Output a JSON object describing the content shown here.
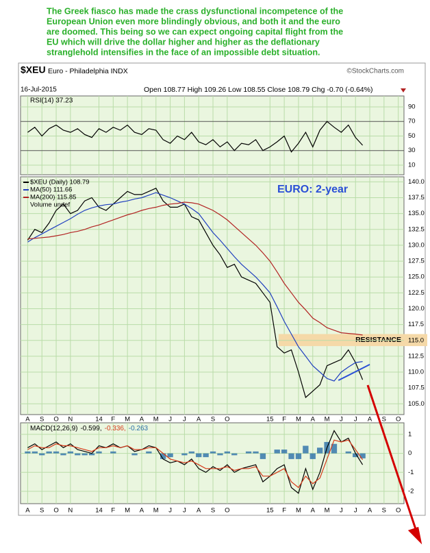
{
  "note": {
    "lines": [
      "The Greek fiasco has made the crass dysfunctional incompetence of the",
      "European Union even more blindingly obvious, and both it and the euro",
      "are doomed. This being so we can expect ongoing capital flight from the",
      "EU which will drive the dollar higher and higher as the deflationary",
      "stranglehold intensifies in the face of an impossible debt situation."
    ]
  },
  "header": {
    "symbol": "$XEU",
    "name": "Euro - Philadelphia INDX",
    "credit": "©StockCharts.com",
    "date": "16-Jul-2015",
    "quote": "Open 108.77  High 109.26  Low 108.55  Close 108.79  Chg -0.70 (-0.64%)"
  },
  "chart_data": [
    {
      "type": "line",
      "title": "RSI(14) 37.23",
      "x": [
        0,
        0.5,
        1,
        1.5,
        2,
        2.5,
        3,
        3.5,
        4,
        4.5,
        5,
        5.5,
        6,
        6.5,
        7,
        7.5,
        8,
        8.5,
        9,
        9.5,
        10,
        10.5,
        11,
        11.5,
        12,
        12.5,
        13,
        13.5,
        14,
        14.5,
        15,
        15.5,
        16,
        16.5,
        17,
        17.5,
        18,
        18.5,
        19,
        19.5,
        20,
        20.5,
        21,
        21.5,
        22,
        22.5,
        23,
        23.5
      ],
      "series": [
        {
          "name": "RSI(14)",
          "color": "#000000",
          "values": [
            55,
            62,
            50,
            60,
            65,
            58,
            55,
            60,
            52,
            48,
            60,
            55,
            62,
            58,
            65,
            55,
            52,
            60,
            58,
            45,
            40,
            50,
            45,
            55,
            42,
            38,
            45,
            35,
            42,
            30,
            40,
            38,
            45,
            30,
            35,
            42,
            50,
            28,
            40,
            55,
            35,
            58,
            70,
            62,
            55,
            65,
            48,
            37.23
          ]
        }
      ],
      "xlim": [
        -0.5,
        26.4
      ],
      "ylim": [
        -3.2,
        105
      ],
      "yticks": [
        10,
        30,
        50,
        70,
        90
      ],
      "grid": true
    },
    {
      "type": "line",
      "annotation": "EURO: 2-year",
      "legend_extra": "Volume undef",
      "x": [
        0,
        0.5,
        1,
        1.5,
        2,
        2.5,
        3,
        3.5,
        4,
        4.5,
        5,
        5.5,
        6,
        6.5,
        7,
        7.5,
        8,
        8.5,
        9,
        9.5,
        10,
        10.5,
        11,
        11.5,
        12,
        12.5,
        13,
        13.5,
        14,
        14.5,
        15,
        15.5,
        16,
        16.5,
        17,
        17.5,
        18,
        18.5,
        19,
        19.5,
        20,
        20.5,
        21,
        21.5,
        22,
        22.5,
        23,
        23.5
      ],
      "series": [
        {
          "name": "$XEU (Daily) 108.79",
          "color": "#000000",
          "values": [
            130.8,
            132.5,
            132,
            133.5,
            135.5,
            136.5,
            135,
            135.5,
            137,
            137.5,
            136,
            135.5,
            136.5,
            137.5,
            138.5,
            138,
            138,
            138.5,
            139,
            137,
            136,
            136,
            136.5,
            134.5,
            134,
            132,
            130,
            128.5,
            126.5,
            127,
            125,
            124.5,
            124,
            122.5,
            121,
            114,
            113,
            113.5,
            110,
            106,
            107,
            108,
            111,
            111.5,
            112,
            113.5,
            111.5,
            108.79
          ]
        },
        {
          "name": "MA(50) 111.66",
          "color": "#1f3fbf",
          "values": [
            130.5,
            131.2,
            131.8,
            132.4,
            133,
            133.6,
            134.2,
            134.9,
            135.5,
            135.9,
            136.2,
            136.4,
            136.5,
            136.8,
            137,
            137.3,
            137.5,
            137.9,
            138.3,
            137.9,
            137.5,
            137,
            136.5,
            135.8,
            135,
            133.5,
            132,
            130.8,
            129.5,
            128.2,
            127,
            126,
            125,
            123.8,
            122.5,
            120.3,
            118,
            116,
            114,
            112.5,
            111,
            110,
            109,
            108.6,
            110,
            110.8,
            111.5,
            111.66
          ]
        },
        {
          "name": "MA(200) 115.85",
          "color": "#b22222",
          "values": [
            131,
            131.1,
            131.2,
            131.3,
            131.5,
            131.7,
            132,
            132.2,
            132.5,
            132.9,
            133.2,
            133.6,
            134,
            134.4,
            134.8,
            135.1,
            135.5,
            135.8,
            136,
            136.3,
            136.5,
            136.6,
            136.8,
            136.7,
            136.5,
            136,
            135.5,
            134.8,
            134,
            133,
            132,
            131,
            130,
            128.8,
            127.5,
            125.8,
            124,
            122.5,
            121,
            119.8,
            118.5,
            117.8,
            117,
            116.6,
            116.2,
            116.1,
            116,
            115.85
          ]
        }
      ],
      "resistance": {
        "label": "RESISTANCE",
        "from": 17.6,
        "range": [
          114.1,
          116.0
        ],
        "color": "#f5d9a8"
      },
      "trendline": {
        "x": [
          21.8,
          24.0
        ],
        "y": [
          108.7,
          111.2
        ],
        "color": "#2a4fd6"
      },
      "xlim": [
        -0.5,
        26.4
      ],
      "ylim": [
        103.3,
        140.8
      ],
      "xticks": [
        {
          "value": 0,
          "label": "A"
        },
        {
          "value": 1,
          "label": "S"
        },
        {
          "value": 2,
          "label": "O"
        },
        {
          "value": 3,
          "label": "N"
        },
        {
          "value": 5,
          "label": "14"
        },
        {
          "value": 6,
          "label": "F"
        },
        {
          "value": 7,
          "label": "M"
        },
        {
          "value": 8,
          "label": "A"
        },
        {
          "value": 9,
          "label": "M"
        },
        {
          "value": 10,
          "label": "J"
        },
        {
          "value": 11,
          "label": "J"
        },
        {
          "value": 12,
          "label": "A"
        },
        {
          "value": 13,
          "label": "S"
        },
        {
          "value": 14,
          "label": "O"
        },
        {
          "value": 17,
          "label": "15"
        },
        {
          "value": 18,
          "label": "F"
        },
        {
          "value": 19,
          "label": "M"
        },
        {
          "value": 20,
          "label": "A"
        },
        {
          "value": 21,
          "label": "M"
        },
        {
          "value": 22,
          "label": "J"
        },
        {
          "value": 23,
          "label": "J"
        },
        {
          "value": 24,
          "label": "A"
        },
        {
          "value": 25,
          "label": "S"
        },
        {
          "value": 26,
          "label": "O"
        }
      ],
      "yticks": [
        {
          "value": 105,
          "label": "105.0"
        },
        {
          "value": 107.5,
          "label": "107.5"
        },
        {
          "value": 110,
          "label": "110.0"
        },
        {
          "value": 112.5,
          "label": "112.5"
        },
        {
          "value": 115,
          "label": "115.0"
        },
        {
          "value": 117.5,
          "label": "117.5"
        },
        {
          "value": 120,
          "label": "120.0"
        },
        {
          "value": 122.5,
          "label": "122.5"
        },
        {
          "value": 125,
          "label": "125.0"
        },
        {
          "value": 127.5,
          "label": "127.5"
        },
        {
          "value": 130,
          "label": "130.0"
        },
        {
          "value": 132.5,
          "label": "132.5"
        },
        {
          "value": 135,
          "label": "135.0"
        },
        {
          "value": 137.5,
          "label": "137.5"
        },
        {
          "value": 140,
          "label": "140.0"
        }
      ],
      "grid": true
    },
    {
      "type": "line",
      "title": "MACD(12,26,9)",
      "x": [
        0,
        0.5,
        1,
        1.5,
        2,
        2.5,
        3,
        3.5,
        4,
        4.5,
        5,
        5.5,
        6,
        6.5,
        7,
        7.5,
        8,
        8.5,
        9,
        9.5,
        10,
        10.5,
        11,
        11.5,
        12,
        12.5,
        13,
        13.5,
        14,
        14.5,
        15,
        15.5,
        16,
        16.5,
        17,
        17.5,
        18,
        18.5,
        19,
        19.5,
        20,
        20.5,
        21,
        21.5,
        22,
        22.5,
        23,
        23.5
      ],
      "series": [
        {
          "name": "-0.599,",
          "color": "#000000",
          "values": [
            0.3,
            0.5,
            0.2,
            0.4,
            0.6,
            0.3,
            0.5,
            0.2,
            0.1,
            0.0,
            0.4,
            0.3,
            0.5,
            0.3,
            0.4,
            0.1,
            0.2,
            0.4,
            0.3,
            -0.3,
            -0.5,
            -0.4,
            -0.6,
            -0.3,
            -0.8,
            -1.0,
            -0.7,
            -0.9,
            -0.6,
            -1.0,
            -0.8,
            -0.7,
            -0.6,
            -1.5,
            -1.2,
            -0.8,
            -0.6,
            -1.8,
            -2.1,
            -0.8,
            -1.9,
            -1.0,
            0.3,
            1.2,
            0.6,
            0.8,
            0.0,
            -0.599
          ]
        },
        {
          "name": "-0.336,",
          "color": "#d63a1a",
          "values": [
            0.2,
            0.4,
            0.3,
            0.3,
            0.5,
            0.4,
            0.4,
            0.3,
            0.2,
            0.1,
            0.3,
            0.3,
            0.4,
            0.3,
            0.4,
            0.2,
            0.2,
            0.3,
            0.3,
            0.0,
            -0.3,
            -0.4,
            -0.5,
            -0.4,
            -0.6,
            -0.8,
            -0.8,
            -0.8,
            -0.7,
            -0.9,
            -0.8,
            -0.8,
            -0.7,
            -1.2,
            -1.2,
            -1.0,
            -0.8,
            -1.5,
            -1.8,
            -1.2,
            -1.6,
            -1.3,
            -0.3,
            0.7,
            0.6,
            0.7,
            0.2,
            -0.336
          ]
        },
        {
          "name": "-0.263",
          "color": "#2a6fa8",
          "type": "bar",
          "values": [
            0.1,
            0.1,
            -0.1,
            0.1,
            0.1,
            -0.1,
            0.1,
            -0.1,
            -0.1,
            -0.1,
            0.1,
            0,
            0.1,
            0,
            0,
            -0.1,
            0,
            0.1,
            0,
            -0.3,
            -0.2,
            0,
            -0.1,
            0.1,
            -0.2,
            -0.2,
            0.1,
            -0.1,
            0.1,
            -0.1,
            0,
            0.1,
            0.1,
            -0.3,
            0,
            0.2,
            0.2,
            -0.3,
            -0.3,
            0.4,
            -0.3,
            0.3,
            0.6,
            0.5,
            0,
            0.1,
            -0.2,
            -0.263
          ]
        }
      ],
      "xlim": [
        -0.5,
        26.4
      ],
      "ylim": [
        -2.65,
        1.61
      ],
      "yticks": [
        -2,
        -1,
        0,
        1
      ],
      "xticks": [
        {
          "value": 0,
          "label": "A"
        },
        {
          "value": 1,
          "label": "S"
        },
        {
          "value": 2,
          "label": "O"
        },
        {
          "value": 3,
          "label": "N"
        },
        {
          "value": 5,
          "label": "14"
        },
        {
          "value": 6,
          "label": "F"
        },
        {
          "value": 7,
          "label": "M"
        },
        {
          "value": 8,
          "label": "A"
        },
        {
          "value": 9,
          "label": "M"
        },
        {
          "value": 10,
          "label": "J"
        },
        {
          "value": 11,
          "label": "J"
        },
        {
          "value": 12,
          "label": "A"
        },
        {
          "value": 13,
          "label": "S"
        },
        {
          "value": 14,
          "label": "O"
        },
        {
          "value": 17,
          "label": "15"
        },
        {
          "value": 18,
          "label": "F"
        },
        {
          "value": 19,
          "label": "M"
        },
        {
          "value": 20,
          "label": "A"
        },
        {
          "value": 21,
          "label": "M"
        },
        {
          "value": 22,
          "label": "J"
        },
        {
          "value": 23,
          "label": "J"
        },
        {
          "value": 24,
          "label": "A"
        },
        {
          "value": 25,
          "label": "S"
        },
        {
          "value": 26,
          "label": "O"
        }
      ],
      "grid": true
    }
  ]
}
